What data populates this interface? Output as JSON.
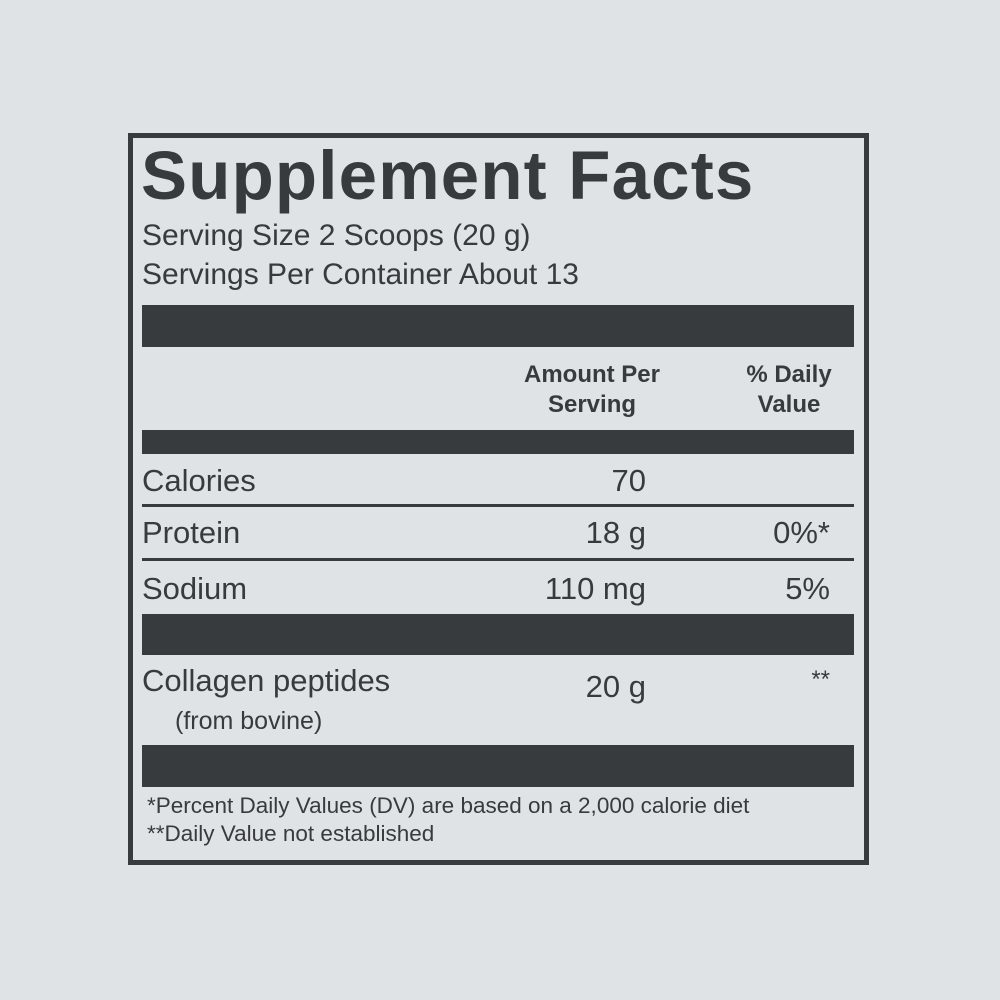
{
  "title": "Supplement Facts",
  "serving_size": "Serving Size 2 Scoops (20 g)",
  "servings_per_container": "Servings Per Container About 13",
  "headers": {
    "amount": [
      "Amount Per",
      "Serving"
    ],
    "dv": [
      "% Daily",
      "Value"
    ]
  },
  "rows": [
    {
      "name": "Calories",
      "amount": "70",
      "dv": ""
    },
    {
      "name": "Protein",
      "amount": "18 g",
      "dv": "0%*"
    },
    {
      "name": "Sodium",
      "amount": "110 mg",
      "dv": "5%"
    }
  ],
  "ingredient": {
    "name": "Collagen peptides",
    "source": "(from bovine)",
    "amount": "20 g",
    "dv": "**"
  },
  "footnotes": [
    "*Percent Daily Values (DV) are based on a 2,000 calorie diet",
    "**Daily Value not established"
  ],
  "colors": {
    "background": "#dfe3e6",
    "ink": "#383b3e"
  }
}
